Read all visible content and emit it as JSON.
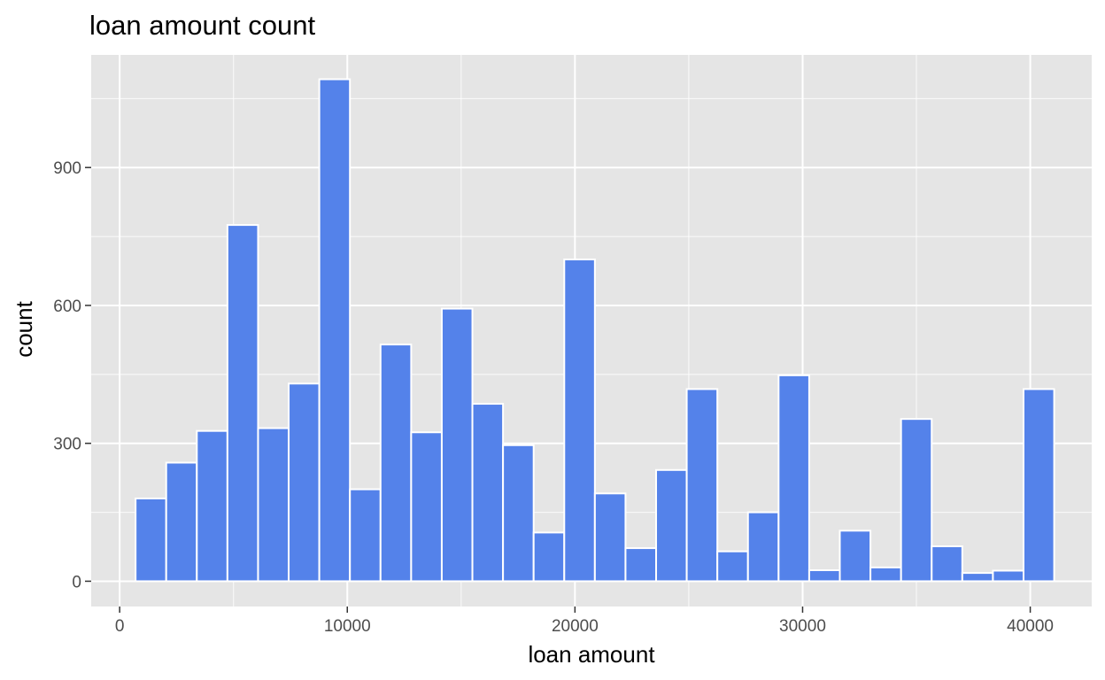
{
  "chart_data": {
    "type": "bar",
    "title": "loan amount count",
    "xlabel": "loan amount",
    "ylabel": "count",
    "xlim": [
      -1250,
      42700
    ],
    "ylim": [
      -55,
      1145
    ],
    "x_ticks": [
      0,
      10000,
      20000,
      30000,
      40000
    ],
    "x_tick_labels": [
      "0",
      "10000",
      "20000",
      "30000",
      "40000"
    ],
    "y_ticks": [
      0,
      300,
      600,
      900
    ],
    "y_tick_labels": [
      "0",
      "300",
      "600",
      "900"
    ],
    "x_minor_ticks": [
      5000,
      15000,
      25000,
      35000
    ],
    "y_minor_ticks": [
      150,
      450,
      750,
      1050
    ],
    "grid": true,
    "legend": "none",
    "bin_width": 1345,
    "bins": [
      {
        "start": 700,
        "end": 2045,
        "value": 180
      },
      {
        "start": 2045,
        "end": 3390,
        "value": 258
      },
      {
        "start": 3390,
        "end": 4735,
        "value": 327
      },
      {
        "start": 4735,
        "end": 6080,
        "value": 775
      },
      {
        "start": 6080,
        "end": 7425,
        "value": 333
      },
      {
        "start": 7425,
        "end": 8770,
        "value": 430
      },
      {
        "start": 8770,
        "end": 10115,
        "value": 1092
      },
      {
        "start": 10115,
        "end": 11460,
        "value": 200
      },
      {
        "start": 11460,
        "end": 12805,
        "value": 515
      },
      {
        "start": 12805,
        "end": 14150,
        "value": 324
      },
      {
        "start": 14150,
        "end": 15495,
        "value": 593
      },
      {
        "start": 15495,
        "end": 16840,
        "value": 386
      },
      {
        "start": 16840,
        "end": 18185,
        "value": 296
      },
      {
        "start": 18185,
        "end": 19530,
        "value": 106
      },
      {
        "start": 19530,
        "end": 20875,
        "value": 700
      },
      {
        "start": 20875,
        "end": 22220,
        "value": 191
      },
      {
        "start": 22220,
        "end": 23565,
        "value": 72
      },
      {
        "start": 23565,
        "end": 24910,
        "value": 242
      },
      {
        "start": 24910,
        "end": 26255,
        "value": 418
      },
      {
        "start": 26255,
        "end": 27600,
        "value": 65
      },
      {
        "start": 27600,
        "end": 28945,
        "value": 150
      },
      {
        "start": 28945,
        "end": 30290,
        "value": 448
      },
      {
        "start": 30290,
        "end": 31635,
        "value": 24
      },
      {
        "start": 31635,
        "end": 32980,
        "value": 110
      },
      {
        "start": 32980,
        "end": 34325,
        "value": 30
      },
      {
        "start": 34325,
        "end": 35670,
        "value": 353
      },
      {
        "start": 35670,
        "end": 37015,
        "value": 76
      },
      {
        "start": 37015,
        "end": 38360,
        "value": 18
      },
      {
        "start": 38360,
        "end": 39705,
        "value": 23
      },
      {
        "start": 39705,
        "end": 41050,
        "value": 418
      }
    ],
    "colors": {
      "bar_fill": "#5482ea",
      "bar_outline": "#ffffff",
      "panel": "#e5e5e5",
      "grid": "#ffffff"
    }
  }
}
